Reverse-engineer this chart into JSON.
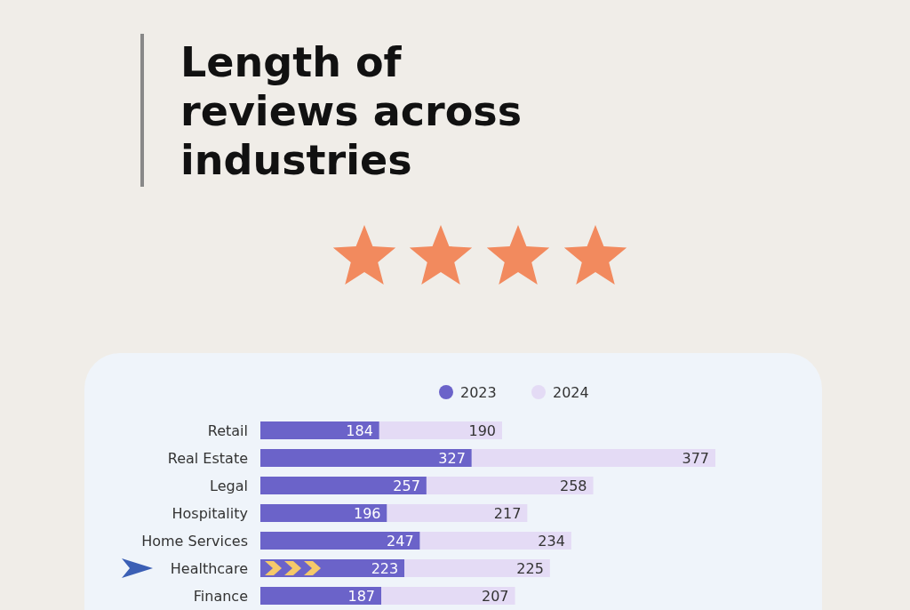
{
  "chart_data": {
    "type": "bar",
    "title": "Length of reviews across industries",
    "orientation": "horizontal",
    "stacked": true,
    "data_labels": true,
    "legend": "top",
    "categories": [
      "Retail",
      "Real Estate",
      "Legal",
      "Hospitality",
      "Home Services",
      "Healthcare",
      "Finance"
    ],
    "series": [
      {
        "name": "2023",
        "color": "#6b63c9",
        "values": [
          184,
          327,
          257,
          196,
          247,
          223,
          187
        ]
      },
      {
        "name": "2024",
        "color": "#e4dbf5",
        "values": [
          190,
          377,
          258,
          217,
          234,
          225,
          207
        ]
      }
    ]
  }
}
